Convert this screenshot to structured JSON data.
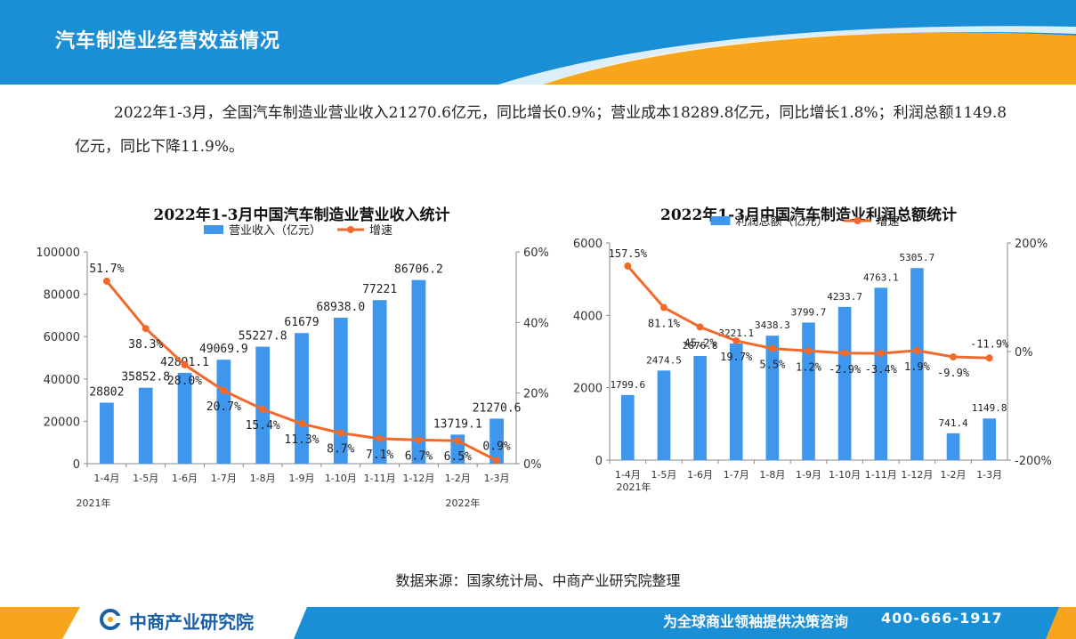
{
  "header": {
    "title": "汽车制造业经营效益情况"
  },
  "intro": "2022年1-3月，全国汽车制造业营业收入21270.6亿元，同比增长0.9%；营业成本18289.8亿元，同比增长1.8%；利润总额1149.8亿元，同比下降11.9%。",
  "source": "数据来源：国家统计局、中商产业研究院整理",
  "footer": {
    "brand": "中商产业研究院",
    "slogan": "为全球商业领袖提供决策咨询",
    "phone": "400-666-1917"
  },
  "colors": {
    "bar": "#3e97ec",
    "line": "#f26a2b",
    "header_blue": "#1a8fd6",
    "header_orange": "#f7a51c",
    "footer_blue": "#1a8fd6"
  },
  "chart_data": [
    {
      "type": "bar+line",
      "title": "2022年1-3月中国汽车制造业营业收入统计",
      "categories": [
        "1-4月",
        "1-5月",
        "1-6月",
        "1-7月",
        "1-8月",
        "1-9月",
        "1-10月",
        "1-11月",
        "1-12月",
        "1-2月",
        "1-3月"
      ],
      "year_labels": [
        "2021年",
        "2022年"
      ],
      "series": [
        {
          "name": "营业收入（亿元）",
          "kind": "bar",
          "axis": "left",
          "values": [
            28802,
            35852.8,
            42891.1,
            49069.9,
            55227.8,
            61679,
            68938.0,
            77221,
            86706.2,
            13719.1,
            21270.6
          ],
          "labels": [
            "28802",
            "35852.8",
            "42891.1",
            "49069.9",
            "55227.8",
            "61679",
            "68938.0",
            "77221",
            "86706.2",
            "13719.1",
            "21270.6"
          ]
        },
        {
          "name": "增速",
          "kind": "line",
          "axis": "right",
          "values": [
            51.7,
            38.3,
            28.0,
            20.7,
            15.4,
            11.3,
            8.7,
            7.1,
            6.7,
            6.5,
            0.9
          ],
          "labels": [
            "51.7%",
            "38.3%",
            "28.0%",
            "20.7%",
            "15.4%",
            "11.3%",
            "8.7%",
            "7.1%",
            "6.7%",
            "6.5%",
            "0.9%"
          ]
        }
      ],
      "ylim_left": [
        0,
        100000
      ],
      "yticks_left": [
        "0",
        "20000",
        "40000",
        "60000",
        "80000",
        "100000"
      ],
      "ylim_right": [
        0,
        60
      ],
      "yticks_right": [
        "0%",
        "20%",
        "40%",
        "60%"
      ]
    },
    {
      "type": "bar+line",
      "title": "2022年1-3月中国汽车制造业利润总额统计",
      "categories": [
        "1-4月",
        "1-5月",
        "1-6月",
        "1-7月",
        "1-8月",
        "1-9月",
        "1-10月",
        "1-11月",
        "1-12月",
        "1-2月",
        "1-3月"
      ],
      "year_labels": [
        "2021年"
      ],
      "series": [
        {
          "name": "利润总额（亿元）",
          "kind": "bar",
          "axis": "left",
          "values": [
            1799.6,
            2474.5,
            2876.8,
            3221.1,
            3438.3,
            3799.7,
            4233.7,
            4763.1,
            5305.7,
            741.4,
            1149.8
          ],
          "labels": [
            "1799.6",
            "2474.5",
            "2876.8",
            "3221.1",
            "3438.3",
            "3799.7",
            "4233.7",
            "4763.1",
            "5305.7",
            "741.4",
            "1149.8"
          ]
        },
        {
          "name": "增速",
          "kind": "line",
          "axis": "right",
          "values": [
            157.5,
            81.1,
            45.2,
            19.7,
            5.5,
            1.2,
            -2.9,
            -3.4,
            1.9,
            -9.9,
            -11.9
          ],
          "labels": [
            "157.5%",
            "81.1%",
            "45.2%",
            "19.7%",
            "5.5%",
            "1.2%",
            "-2.9%",
            "-3.4%",
            "1.9%",
            "-9.9%",
            "-11.9%"
          ]
        }
      ],
      "ylim_left": [
        0,
        6000
      ],
      "yticks_left": [
        "0",
        "2000",
        "4000",
        "6000"
      ],
      "ylim_right": [
        -200,
        200
      ],
      "yticks_right": [
        "-200%",
        "0%",
        "200%"
      ]
    }
  ]
}
